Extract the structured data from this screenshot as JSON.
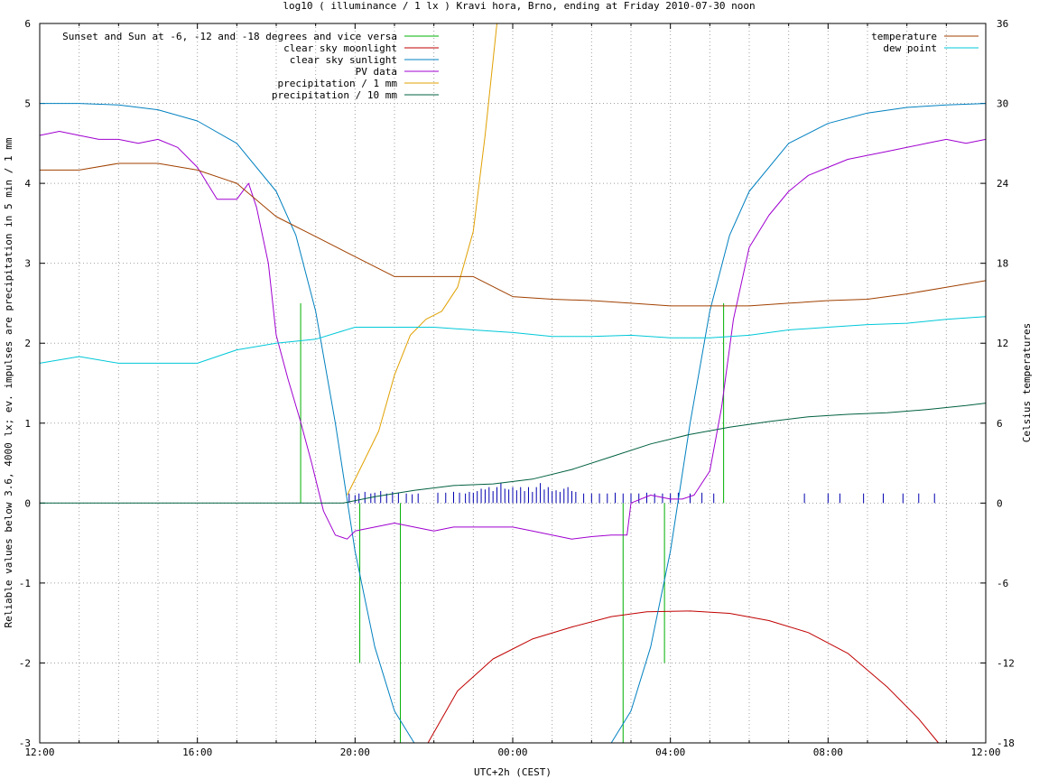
{
  "chart_data": {
    "type": "line",
    "title": "log10 ( illuminance / 1 lx ) Kravi hora, Brno, ending at Friday 2010-07-30 noon",
    "xlabel": "UTC+2h (CEST)",
    "ylabel": "Reliable values below 3.6, 4000 lx; ev. impulses are precipitation in 5 min / 1 mm",
    "y2label": "Celsius temperatures",
    "x_unit": "hours from 12:00",
    "xlim": [
      0,
      24
    ],
    "ylim": [
      -3,
      6
    ],
    "y2lim": [
      -18,
      36
    ],
    "x_ticks": [
      "12:00",
      "16:00",
      "20:00",
      "00:00",
      "04:00",
      "08:00",
      "12:00"
    ],
    "y_ticks": [
      "-3",
      "-2",
      "-1",
      "0",
      "1",
      "2",
      "3",
      "4",
      "5",
      "6"
    ],
    "y2_ticks": [
      "-18",
      "-12",
      "-6",
      "0",
      "6",
      "12",
      "18",
      "24",
      "30",
      "36"
    ],
    "grid": true,
    "legend_left_position": "top-left",
    "legend_right_position": "top-right",
    "twilight_markers": {
      "name": "Sunset and Sun at -6, -12 and -18 degrees and vice versa",
      "color": "#00b000",
      "lines": [
        {
          "x": 6.62,
          "y0": 0,
          "y1": 2.5
        },
        {
          "x": 8.12,
          "y0": 0,
          "y1": -2.0
        },
        {
          "x": 9.15,
          "y0": 0,
          "y1": -3.0
        },
        {
          "x": 14.8,
          "y0": 0,
          "y1": -3.0
        },
        {
          "x": 15.85,
          "y0": 0,
          "y1": -2.0
        },
        {
          "x": 17.35,
          "y0": 0,
          "y1": 2.5
        }
      ]
    },
    "series": [
      {
        "name": "clear sky moonlight",
        "color": "#c00000",
        "axis": "y",
        "x": [
          9.85,
          10.6,
          11.5,
          12.5,
          13.5,
          14.5,
          15.4,
          16.5,
          17.5,
          18.5,
          19.5,
          20.5,
          21.5,
          22.3,
          22.8
        ],
        "y": [
          -3.0,
          -2.35,
          -1.95,
          -1.7,
          -1.55,
          -1.42,
          -1.36,
          -1.35,
          -1.38,
          -1.47,
          -1.62,
          -1.88,
          -2.3,
          -2.7,
          -3.0
        ]
      },
      {
        "name": "clear sky sunlight",
        "color": "#0080c0",
        "axis": "y",
        "x": [
          0,
          1,
          2,
          3,
          4,
          5,
          6,
          6.5,
          7,
          7.5,
          8,
          8.5,
          9,
          9.5,
          14.5,
          15,
          15.5,
          16,
          16.5,
          17,
          17.5,
          18,
          19,
          20,
          21,
          22,
          23,
          24
        ],
        "y": [
          5.0,
          5.0,
          4.98,
          4.92,
          4.78,
          4.5,
          3.9,
          3.35,
          2.4,
          1.0,
          -0.6,
          -1.8,
          -2.6,
          -3.0,
          -3.0,
          -2.6,
          -1.8,
          -0.6,
          1.0,
          2.4,
          3.35,
          3.9,
          4.5,
          4.75,
          4.88,
          4.95,
          4.98,
          5.0
        ]
      },
      {
        "name": "PV data",
        "color": "#a000d0",
        "axis": "y",
        "x": [
          0,
          0.5,
          1,
          1.5,
          2,
          2.5,
          3,
          3.5,
          4,
          4.5,
          5,
          5.3,
          5.5,
          5.8,
          6,
          6.3,
          6.6,
          6.9,
          7.2,
          7.5,
          7.8,
          8,
          8.5,
          9,
          9.5,
          10,
          10.5,
          11,
          11.5,
          12,
          12.5,
          13,
          13.5,
          14,
          14.5,
          14.9,
          15,
          15.5,
          16,
          16.3,
          16.6,
          17,
          17.3,
          17.6,
          18,
          18.5,
          19,
          19.5,
          20,
          20.5,
          21,
          21.5,
          22,
          22.5,
          23,
          23.5,
          24
        ],
        "y": [
          4.6,
          4.65,
          4.6,
          4.55,
          4.55,
          4.5,
          4.55,
          4.45,
          4.2,
          3.8,
          3.8,
          4.0,
          3.7,
          3.0,
          2.1,
          1.55,
          1.05,
          0.5,
          -0.1,
          -0.4,
          -0.45,
          -0.35,
          -0.3,
          -0.25,
          -0.3,
          -0.35,
          -0.3,
          -0.3,
          -0.3,
          -0.3,
          -0.35,
          -0.4,
          -0.45,
          -0.42,
          -0.4,
          -0.4,
          0.0,
          0.1,
          0.05,
          0.05,
          0.1,
          0.4,
          1.2,
          2.3,
          3.2,
          3.6,
          3.9,
          4.1,
          4.2,
          4.3,
          4.35,
          4.4,
          4.45,
          4.5,
          4.55,
          4.5,
          4.55
        ]
      },
      {
        "name": "precipitation / 1 mm",
        "color": "#e0a000",
        "axis": "y",
        "x": [
          7.8,
          8.2,
          8.6,
          9.0,
          9.4,
          9.8,
          10.2,
          10.6,
          11.0,
          11.3,
          11.6
        ],
        "y": [
          0.1,
          0.5,
          0.9,
          1.6,
          2.1,
          2.3,
          2.4,
          2.7,
          3.4,
          4.6,
          6.0
        ]
      },
      {
        "name": "precipitation / 10 mm",
        "color": "#006040",
        "axis": "y",
        "x": [
          0,
          7.7,
          8.5,
          9.5,
          10.5,
          11.5,
          12.5,
          13.5,
          14.5,
          15.5,
          16.5,
          17.5,
          18.5,
          19.5,
          20.5,
          21.5,
          22.5,
          23.5,
          24
        ],
        "y": [
          0,
          0,
          0.08,
          0.16,
          0.22,
          0.24,
          0.3,
          0.42,
          0.58,
          0.74,
          0.86,
          0.95,
          1.02,
          1.08,
          1.11,
          1.13,
          1.17,
          1.22,
          1.25
        ]
      },
      {
        "name": "temperature",
        "color": "#a04000",
        "axis": "y2",
        "x": [
          0,
          1,
          2,
          3,
          4,
          5,
          6,
          7,
          8,
          9,
          10,
          11,
          12,
          13,
          14,
          15,
          16,
          17,
          18,
          19,
          20,
          21,
          22,
          23,
          24
        ],
        "y": [
          25,
          25,
          25.5,
          25.5,
          25,
          24,
          21.5,
          20,
          18.5,
          17,
          17,
          17,
          15.5,
          15.3,
          15.2,
          15,
          14.8,
          14.8,
          14.8,
          15,
          15.2,
          15.3,
          15.7,
          16.2,
          16.7
        ]
      },
      {
        "name": "dew point",
        "color": "#00c8d8",
        "axis": "y2",
        "x": [
          0,
          1,
          2,
          3,
          4,
          5,
          6,
          7,
          8,
          9,
          10,
          11,
          12,
          13,
          14,
          15,
          16,
          17,
          18,
          19,
          20,
          21,
          22,
          23,
          24
        ],
        "y": [
          10.5,
          11,
          10.5,
          10.5,
          10.5,
          11.5,
          12,
          12.3,
          13.2,
          13.2,
          13.2,
          13,
          12.8,
          12.5,
          12.5,
          12.6,
          12.4,
          12.4,
          12.6,
          13,
          13.2,
          13.4,
          13.5,
          13.8,
          14
        ]
      }
    ],
    "precipitation_impulses": {
      "color": "#0000b0",
      "x": [
        7.85,
        8.0,
        8.1,
        8.25,
        8.4,
        8.5,
        8.65,
        8.8,
        8.95,
        9.1,
        9.3,
        9.45,
        9.6,
        10.1,
        10.3,
        10.5,
        10.65,
        10.8,
        10.9,
        11.0,
        11.1,
        11.2,
        11.3,
        11.4,
        11.5,
        11.6,
        11.7,
        11.8,
        11.9,
        12.0,
        12.1,
        12.2,
        12.3,
        12.4,
        12.5,
        12.6,
        12.7,
        12.8,
        12.9,
        13.0,
        13.1,
        13.2,
        13.3,
        13.4,
        13.5,
        13.6,
        13.8,
        14.0,
        14.2,
        14.4,
        14.6,
        14.8,
        15.0,
        15.2,
        15.4,
        15.6,
        15.8,
        16.0,
        16.2,
        16.5,
        16.8,
        17.1,
        19.4,
        20.0,
        20.3,
        20.9,
        21.4,
        21.9,
        22.3,
        22.7
      ],
      "y": [
        0.12,
        0.1,
        0.12,
        0.14,
        0.12,
        0.13,
        0.15,
        0.12,
        0.14,
        0.13,
        0.12,
        0.11,
        0.12,
        0.13,
        0.13,
        0.14,
        0.13,
        0.12,
        0.14,
        0.13,
        0.15,
        0.18,
        0.17,
        0.2,
        0.15,
        0.2,
        0.25,
        0.18,
        0.17,
        0.2,
        0.16,
        0.2,
        0.15,
        0.2,
        0.14,
        0.2,
        0.25,
        0.17,
        0.2,
        0.15,
        0.16,
        0.14,
        0.18,
        0.2,
        0.15,
        0.14,
        0.12,
        0.12,
        0.12,
        0.12,
        0.13,
        0.12,
        0.12,
        0.12,
        0.13,
        0.12,
        0.12,
        0.12,
        0.13,
        0.12,
        0.13,
        0.12,
        0.12,
        0.12,
        0.12,
        0.12,
        0.12,
        0.12,
        0.12,
        0.12
      ]
    },
    "legend_left": [
      {
        "name": "Sunset and Sun at -6, -12 and -18 degrees and vice versa",
        "color": "#00b000"
      },
      {
        "name": "clear sky moonlight",
        "color": "#c00000"
      },
      {
        "name": "clear sky sunlight",
        "color": "#0080c0"
      },
      {
        "name": "PV data",
        "color": "#a000d0"
      },
      {
        "name": "precipitation / 1 mm",
        "color": "#e0a000"
      },
      {
        "name": "precipitation / 10 mm",
        "color": "#006040"
      }
    ],
    "legend_right": [
      {
        "name": "temperature",
        "color": "#a04000"
      },
      {
        "name": "dew point",
        "color": "#00c8d8"
      }
    ]
  }
}
